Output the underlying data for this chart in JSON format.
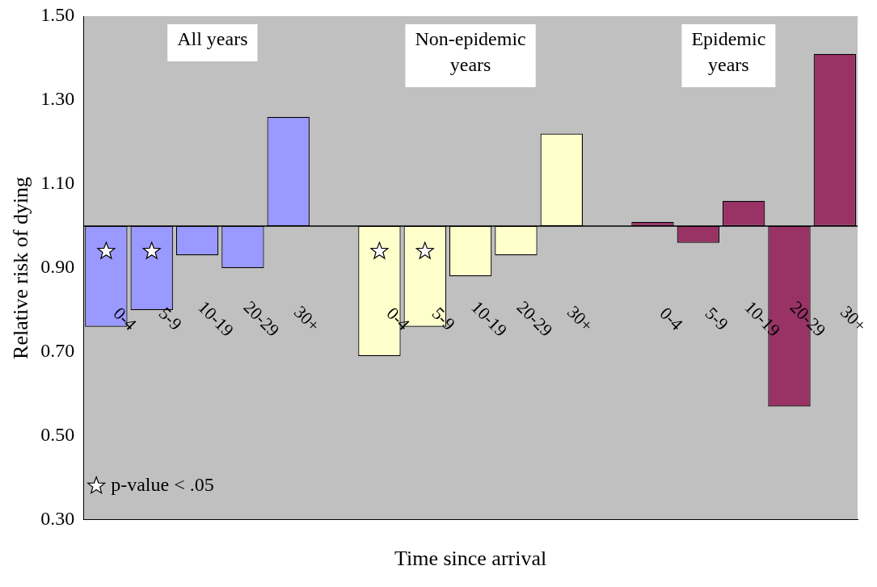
{
  "chart_data": {
    "type": "bar",
    "xlabel": "Time since arrival",
    "ylabel": "Relative risk of dying",
    "categories": [
      "0-4",
      "5-9",
      "10-19",
      "20-29",
      "30+",
      null,
      "0-4",
      "5-9",
      "10-19",
      "20-29",
      "30+",
      null,
      "0-4",
      "5-9",
      "10-19",
      "20-29",
      "30+"
    ],
    "series": [
      {
        "colors": [
          "#9999ff",
          "#9999ff",
          "#9999ff",
          "#9999ff",
          "#9999ff",
          "#9999ff",
          "#ffffcc",
          "#ffffcc",
          "#ffffcc",
          "#ffffcc",
          "#ffffcc",
          "#ffffcc",
          "#993366",
          "#993366",
          "#993366",
          "#993366",
          "#993366"
        ],
        "base": [
          1,
          1,
          1,
          1,
          1,
          null,
          1,
          1,
          1,
          1,
          1,
          null,
          1,
          1,
          1,
          1,
          1
        ],
        "values": [
          -0.24,
          -0.2,
          -0.07,
          -0.1,
          0.26,
          null,
          -0.31,
          -0.24,
          -0.12,
          -0.07,
          0.22,
          null,
          0.01,
          -0.04,
          0.06,
          -0.43,
          0.41
        ]
      },
      {
        "type": "scatter",
        "name": "p-value < .05",
        "color": "#ffffff",
        "marker": "star",
        "values": [
          0.94,
          0.94,
          null,
          null,
          null,
          null,
          0.94,
          0.94,
          null,
          null,
          null,
          null,
          null,
          null,
          null,
          null,
          null
        ]
      }
    ],
    "ylim": [
      0.3,
      1.5
    ],
    "yticks": [
      {
        "value": 0.3,
        "label": "0.30"
      },
      {
        "value": 0.5,
        "label": "0.50"
      },
      {
        "value": 0.7,
        "label": "0.70"
      },
      {
        "value": 0.9,
        "label": "0.90"
      },
      {
        "value": 1.1,
        "label": "1.10"
      },
      {
        "value": 1.3,
        "label": "1.30"
      },
      {
        "value": 1.5,
        "label": "1.50"
      }
    ],
    "ref_lines": [
      {
        "axis": "y",
        "value": 1,
        "color": "#000000"
      }
    ],
    "annotations": [
      "All years",
      "Non-epidemic years",
      "Epidemic years"
    ],
    "grid": false,
    "legend": "bottom left"
  }
}
